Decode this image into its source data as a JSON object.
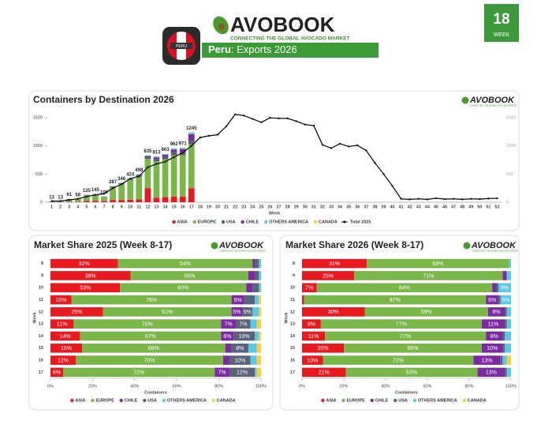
{
  "header": {
    "logo": "AVOBOOK",
    "tagline": "CONNECTING THE GLOBAL AVOCADO MARKET",
    "flag": "PERU",
    "country": "Peru",
    "subtitle": ": Exports 2026",
    "week": "18",
    "week_label": "WEEK"
  },
  "chart_data": [
    {
      "type": "bar",
      "stacked": true,
      "orientation": "vertical",
      "title": "Containers by Destination 2026",
      "xlabel": "Week",
      "categories": [
        1,
        2,
        3,
        4,
        5,
        6,
        7,
        8,
        9,
        10,
        11,
        12,
        13,
        14,
        15,
        16,
        17,
        18,
        19,
        20,
        21,
        22,
        23,
        24,
        25,
        26,
        27,
        28,
        29,
        30,
        31,
        32,
        33,
        34,
        35,
        36,
        37,
        38,
        39,
        40,
        41,
        42,
        43,
        44,
        45,
        46,
        47,
        48,
        49,
        50,
        51,
        52
      ],
      "ylim": [
        0,
        1600
      ],
      "yticks": [
        0,
        500,
        1000,
        1500
      ],
      "grid": false,
      "series": [
        {
          "name": "ASIA",
          "color": "#e8191f",
          "values": [
            5,
            3,
            10,
            10,
            20,
            25,
            20,
            40,
            40,
            45,
            50,
            250,
            80,
            90,
            100,
            100,
            250,
            null,
            null,
            null,
            null,
            null,
            null,
            null,
            null,
            null,
            null,
            null,
            null,
            null,
            null,
            null,
            null,
            null,
            null,
            null,
            null,
            null,
            null,
            null,
            null,
            null,
            null,
            null,
            null,
            null,
            null,
            null,
            null,
            null,
            null,
            null
          ]
        },
        {
          "name": "EUROPE",
          "color": "#7ab648",
          "values": [
            8,
            10,
            46,
            43,
            105,
            110,
            76,
            227,
            281,
            349,
            408,
            520,
            648,
            673,
            737,
            736,
            780,
            null,
            null,
            null,
            null,
            null,
            null,
            null,
            null,
            null,
            null,
            null,
            null,
            null,
            null,
            null,
            null,
            null,
            null,
            null,
            null,
            null,
            null,
            null,
            null,
            null,
            null,
            null,
            null,
            null,
            null,
            null,
            null,
            null,
            null,
            null
          ]
        },
        {
          "name": "USA",
          "color": "#555f6e",
          "values": [
            0,
            0,
            0,
            0,
            5,
            5,
            5,
            10,
            10,
            15,
            20,
            30,
            40,
            40,
            50,
            50,
            60,
            null,
            null,
            null,
            null,
            null,
            null,
            null,
            null,
            null,
            null,
            null,
            null,
            null,
            null,
            null,
            null,
            null,
            null,
            null,
            null,
            null,
            null,
            null,
            null,
            null,
            null,
            null,
            null,
            null,
            null,
            null,
            null,
            null,
            null,
            null
          ]
        },
        {
          "name": "CHILE",
          "color": "#7b2aa0",
          "values": [
            0,
            0,
            0,
            0,
            0,
            0,
            0,
            5,
            5,
            5,
            10,
            20,
            30,
            40,
            50,
            60,
            120,
            null,
            null,
            null,
            null,
            null,
            null,
            null,
            null,
            null,
            null,
            null,
            null,
            null,
            null,
            null,
            null,
            null,
            null,
            null,
            null,
            null,
            null,
            null,
            null,
            null,
            null,
            null,
            null,
            null,
            null,
            null,
            null,
            null,
            null,
            null
          ]
        },
        {
          "name": "OTHERS AMERICA",
          "color": "#5bc8e8",
          "values": [
            0,
            0,
            5,
            5,
            5,
            5,
            5,
            5,
            10,
            10,
            10,
            15,
            15,
            15,
            20,
            20,
            25,
            null,
            null,
            null,
            null,
            null,
            null,
            null,
            null,
            null,
            null,
            null,
            null,
            null,
            null,
            null,
            null,
            null,
            null,
            null,
            null,
            null,
            null,
            null,
            null,
            null,
            null,
            null,
            null,
            null,
            null,
            null,
            null,
            null,
            null,
            null
          ]
        },
        {
          "name": "CANADA",
          "color": "#f5d23a",
          "values": [
            0,
            0,
            0,
            0,
            0,
            0,
            0,
            0,
            0,
            0,
            0,
            0,
            0,
            5,
            5,
            5,
            10,
            null,
            null,
            null,
            null,
            null,
            null,
            null,
            null,
            null,
            null,
            null,
            null,
            null,
            null,
            null,
            null,
            null,
            null,
            null,
            null,
            null,
            null,
            null,
            null,
            null,
            null,
            null,
            null,
            null,
            null,
            null,
            null,
            null,
            null,
            null
          ]
        },
        {
          "name": "Total 2025",
          "color": "#111111",
          "type": "line",
          "values": [
            20,
            20,
            40,
            60,
            100,
            130,
            150,
            250,
            320,
            420,
            460,
            620,
            680,
            720,
            800,
            880,
            1000,
            1150,
            1180,
            1200,
            1350,
            1560,
            1540,
            1480,
            1420,
            1500,
            1490,
            1490,
            1440,
            1380,
            1360,
            1020,
            960,
            1040,
            990,
            1010,
            920,
            700,
            500,
            290,
            60,
            50,
            60,
            50,
            70,
            55,
            60,
            50,
            60,
            55,
            65,
            70
          ]
        }
      ],
      "totals": [
        13,
        13,
        61,
        58,
        135,
        145,
        106,
        287,
        346,
        424,
        498,
        835,
        813,
        863,
        962,
        971,
        1245,
        null,
        null,
        null,
        null,
        null,
        null,
        null,
        null,
        null,
        null,
        null,
        null,
        null,
        null,
        null,
        null,
        null,
        null,
        null,
        null,
        null,
        null,
        null,
        null,
        null,
        null,
        null,
        null,
        null,
        null,
        null,
        null,
        null,
        null,
        null
      ]
    },
    {
      "type": "bar",
      "stacked": true,
      "orientation": "horizontal",
      "title": "Market Share 2025 (Week 8-17)",
      "xlabel": "Containers",
      "ylabel": "Week",
      "categories": [
        8,
        9,
        10,
        11,
        12,
        13,
        14,
        15,
        16,
        17
      ],
      "xlim": [
        0,
        100
      ],
      "xticks": [
        {
          "value": 0,
          "label": "0%"
        },
        {
          "value": 20,
          "label": "20%"
        },
        {
          "value": 40,
          "label": "40%"
        },
        {
          "value": 60,
          "label": "60%"
        },
        {
          "value": 80,
          "label": "80%"
        },
        {
          "value": 100,
          "label": "100%"
        }
      ],
      "series": [
        {
          "name": "ASIA",
          "color": "#e8191f",
          "values": [
            32,
            38,
            33,
            10,
            25,
            11,
            14,
            15,
            12,
            6
          ],
          "value_labels": [
            "32%",
            "38%",
            "33%",
            "10%",
            "25%",
            "11%",
            "14%",
            "15%",
            "12%",
            "6%"
          ]
        },
        {
          "name": "EUROPE",
          "color": "#7ab648",
          "values": [
            64,
            56,
            60,
            76,
            61,
            70,
            67,
            68,
            70,
            72
          ],
          "value_labels": [
            "64%",
            "56%",
            "60%",
            "76%",
            "61%",
            "70%",
            "67%",
            "68%",
            "70%",
            "72%"
          ]
        },
        {
          "name": "CHILE",
          "color": "#7b2aa0",
          "values": [
            1,
            3,
            3,
            6,
            5,
            7,
            6,
            3,
            3,
            7
          ],
          "value_labels": [
            null,
            null,
            null,
            "6%",
            "5%",
            "7%",
            "6%",
            null,
            null,
            "7%"
          ]
        },
        {
          "name": "USA",
          "color": "#5a6478",
          "values": [
            2,
            2,
            3,
            5,
            5,
            7,
            10,
            8,
            10,
            12
          ],
          "value_labels": [
            null,
            null,
            null,
            null,
            "5%",
            "7%",
            "10%",
            "8%",
            "10%",
            "12%"
          ]
        },
        {
          "name": "OTHERS AMERICA",
          "color": "#5bc8e8",
          "values": [
            1,
            1,
            1,
            2,
            3,
            3,
            2,
            4,
            3,
            1
          ],
          "value_labels": [
            null,
            null,
            null,
            null,
            null,
            null,
            null,
            null,
            null,
            null
          ]
        },
        {
          "name": "CANADA",
          "color": "#f5d23a",
          "values": [
            0,
            0,
            0,
            1,
            1,
            2,
            1,
            2,
            2,
            2
          ],
          "value_labels": [
            null,
            null,
            null,
            null,
            null,
            null,
            null,
            null,
            null,
            null
          ]
        }
      ]
    },
    {
      "type": "bar",
      "stacked": true,
      "orientation": "horizontal",
      "title": "Market Share 2026 (Week 8-17)",
      "xlabel": "Containers",
      "ylabel": "Week",
      "categories": [
        8,
        9,
        10,
        11,
        12,
        13,
        14,
        15,
        16,
        17
      ],
      "xlim": [
        0,
        100
      ],
      "xticks": [
        {
          "value": 0,
          "label": "0%"
        },
        {
          "value": 20,
          "label": "20%"
        },
        {
          "value": 40,
          "label": "40%"
        },
        {
          "value": 60,
          "label": "60%"
        },
        {
          "value": 80,
          "label": "80%"
        },
        {
          "value": 100,
          "label": "100%"
        }
      ],
      "series": [
        {
          "name": "ASIA",
          "color": "#e8191f",
          "values": [
            31,
            25,
            7,
            1,
            30,
            9,
            11,
            20,
            10,
            21
          ],
          "value_labels": [
            "31%",
            "25%",
            "7%",
            null,
            "30%",
            "9%",
            "11%",
            "20%",
            "10%",
            "21%"
          ]
        },
        {
          "name": "EUROPE",
          "color": "#7ab648",
          "values": [
            68,
            71,
            84,
            87,
            59,
            77,
            77,
            66,
            72,
            63
          ],
          "value_labels": [
            "68%",
            "71%",
            "84%",
            "87%",
            "59%",
            "77%",
            "77%",
            "66%",
            "72%",
            "63%"
          ]
        },
        {
          "name": "CHILE",
          "color": "#7b2aa0",
          "values": [
            0,
            2,
            2,
            6,
            8,
            11,
            8,
            10,
            13,
            13
          ],
          "value_labels": [
            null,
            null,
            null,
            "6%",
            "8%",
            "11%",
            "8%",
            "10%",
            "13%",
            "13%"
          ]
        },
        {
          "name": "USA",
          "color": "#5a6478",
          "values": [
            0,
            0,
            1,
            1,
            1,
            1,
            1,
            1,
            1,
            1
          ],
          "value_labels": [
            null,
            null,
            null,
            null,
            null,
            null,
            null,
            null,
            null,
            null
          ]
        },
        {
          "name": "OTHERS AMERICA",
          "color": "#5bc8e8",
          "values": [
            1,
            2,
            6,
            5,
            2,
            2,
            3,
            3,
            2,
            2
          ],
          "value_labels": [
            null,
            null,
            "6%",
            "5%",
            null,
            null,
            null,
            null,
            null,
            null
          ]
        },
        {
          "name": "CANADA",
          "color": "#f5d23a",
          "values": [
            0,
            0,
            0,
            0,
            0,
            0,
            0,
            0,
            2,
            0
          ],
          "value_labels": [
            null,
            null,
            null,
            null,
            null,
            null,
            null,
            null,
            null,
            null
          ]
        }
      ]
    }
  ]
}
